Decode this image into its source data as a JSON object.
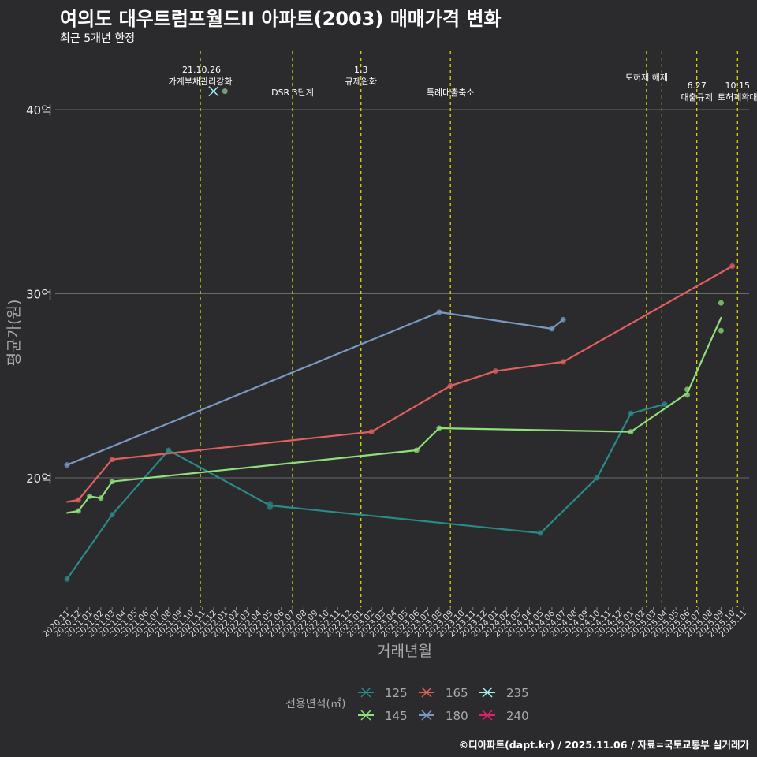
{
  "header": {
    "title": "여의도 대우트럼프월드II 아파트(2003) 매매가격 변화",
    "subtitle": "최근 5개년 한정"
  },
  "caption": "©디아파트(dapt.kr) / 2025.11.06 / 자료=국토교통부 실거래가",
  "chart_data": {
    "type": "line",
    "title": "여의도 대우트럼프월드II 아파트(2003) 매매가격 변화",
    "xlabel": "거래년월",
    "ylabel": "평균가(원)",
    "ylim": [
      13.5,
      43
    ],
    "yticks": [
      {
        "value": 20,
        "label": "20억"
      },
      {
        "value": 30,
        "label": "30억"
      },
      {
        "value": 40,
        "label": "40억"
      }
    ],
    "x_start": "2020-11",
    "x_end": "2025-11",
    "x_ticks": [
      "2020.11",
      "2020.12",
      "2021.01",
      "2021.02",
      "2021.03",
      "2021.04",
      "2021.05",
      "2021.06",
      "2021.07",
      "2021.08",
      "2021.09",
      "2021.10",
      "2021.11",
      "2021.12",
      "2022.01",
      "2022.02",
      "2022.03",
      "2022.04",
      "2022.05",
      "2022.06",
      "2022.07",
      "2022.08",
      "2022.09",
      "2022.10",
      "2022.11",
      "2022.12",
      "2023.01",
      "2023.02",
      "2023.03",
      "2023.04",
      "2023.05",
      "2023.06",
      "2023.07",
      "2023.08",
      "2023.09",
      "2023.10",
      "2023.11",
      "2023.12",
      "2024.01",
      "2024.02",
      "2024.03",
      "2024.04",
      "2024.05",
      "2024.06",
      "2024.07",
      "2024.08",
      "2024.09",
      "2024.10",
      "2024.11",
      "2024.12",
      "2025.01",
      "2025.02",
      "2025.03",
      "2025.04",
      "2025.05",
      "2025.06",
      "2025.07",
      "2025.08",
      "2025.09",
      "2025.10",
      "2025.11"
    ],
    "legend_title": "전용면적(㎡)",
    "series": [
      {
        "name": "125",
        "color": "#2a8a8a",
        "line": [
          [
            "2020-11",
            14.5
          ],
          [
            "2021-03",
            18.0
          ],
          [
            "2021-08",
            21.5
          ],
          [
            "2022-05",
            18.5
          ],
          [
            "2024-05",
            17.0
          ],
          [
            "2024-10",
            20.0
          ],
          [
            "2025-01",
            23.5
          ],
          [
            "2025-04",
            24.0
          ]
        ],
        "points": [
          [
            "2020-11",
            14.5
          ],
          [
            "2021-03",
            18.0
          ],
          [
            "2021-08",
            21.5
          ],
          [
            "2022-05",
            18.6
          ],
          [
            "2022-05",
            18.4
          ],
          [
            "2024-05",
            17.0
          ],
          [
            "2024-10",
            20.0
          ],
          [
            "2025-01",
            23.5
          ],
          [
            "2025-04",
            24.0
          ]
        ]
      },
      {
        "name": "145",
        "color": "#8fe07a",
        "line": [
          [
            "2020-11",
            18.1
          ],
          [
            "2020-12",
            18.2
          ],
          [
            "2021-01",
            19.0
          ],
          [
            "2021-02",
            18.9
          ],
          [
            "2021-03",
            19.8
          ],
          [
            "2023-06",
            21.5
          ],
          [
            "2023-08",
            22.7
          ],
          [
            "2025-01",
            22.5
          ],
          [
            "2025-06",
            24.6
          ],
          [
            "2025-09",
            28.7
          ]
        ],
        "points": [
          [
            "2020-12",
            18.2
          ],
          [
            "2021-01",
            19.0
          ],
          [
            "2021-02",
            18.9
          ],
          [
            "2021-03",
            19.8
          ],
          [
            "2023-06",
            21.5
          ],
          [
            "2023-08",
            22.7
          ],
          [
            "2025-01",
            22.5
          ],
          [
            "2025-06",
            24.5
          ],
          [
            "2025-06",
            24.8
          ],
          [
            "2025-09",
            29.5
          ],
          [
            "2025-09",
            28.0
          ]
        ]
      },
      {
        "name": "165",
        "color": "#e06060",
        "line": [
          [
            "2020-11",
            18.7
          ],
          [
            "2020-12",
            18.8
          ],
          [
            "2021-03",
            21.0
          ],
          [
            "2023-02",
            22.5
          ],
          [
            "2023-09",
            25.0
          ],
          [
            "2024-01",
            25.8
          ],
          [
            "2024-07",
            26.3
          ],
          [
            "2025-10",
            31.5
          ]
        ],
        "points": [
          [
            "2020-12",
            18.8
          ],
          [
            "2021-03",
            21.0
          ],
          [
            "2023-02",
            22.5
          ],
          [
            "2023-09",
            25.0
          ],
          [
            "2024-01",
            25.8
          ],
          [
            "2024-07",
            26.3
          ],
          [
            "2025-10",
            31.5
          ]
        ]
      },
      {
        "name": "180",
        "color": "#7a99c2",
        "line": [
          [
            "2020-11",
            20.7
          ],
          [
            "2023-08",
            29.0
          ],
          [
            "2024-06",
            28.1
          ],
          [
            "2024-07",
            28.6
          ]
        ],
        "points": [
          [
            "2020-11",
            20.7
          ],
          [
            "2023-08",
            29.0
          ],
          [
            "2024-06",
            28.1
          ],
          [
            "2024-07",
            28.6
          ]
        ]
      },
      {
        "name": "235",
        "color": "#a8f0f0",
        "line": [],
        "points": [
          [
            "2021-12",
            41.0
          ]
        ]
      },
      {
        "name": "240",
        "color": "#e0206f",
        "line": [],
        "points": []
      }
    ],
    "extra_points": [
      {
        "x": "2022-01",
        "y": 41.0,
        "color": "#7fb08a"
      }
    ],
    "events": [
      {
        "date": "2021-10-26",
        "label": [
          "'21.10.26",
          "가계부채관리강화"
        ],
        "label_tier": "top"
      },
      {
        "date": "2022-07-01",
        "label": [
          "DSR 3단계"
        ],
        "label_tier": "low"
      },
      {
        "date": "2023-01-03",
        "label": [
          "1.3",
          "규제완화"
        ],
        "label_tier": "top"
      },
      {
        "date": "2023-09-01",
        "label": [
          "특례대출축소"
        ],
        "label_tier": "low"
      },
      {
        "date": "2025-02-13",
        "label": [
          "토허제 해제"
        ],
        "label_tier": "mid"
      },
      {
        "date": "2025-03-24",
        "label": [],
        "label_tier": "mid"
      },
      {
        "date": "2025-06-27",
        "label": [
          "6.27",
          "대출규제"
        ],
        "label_tier": "bottom"
      },
      {
        "date": "2025-10-15",
        "label": [
          "10.15",
          "토허제확대"
        ],
        "label_tier": "bottom"
      }
    ]
  }
}
